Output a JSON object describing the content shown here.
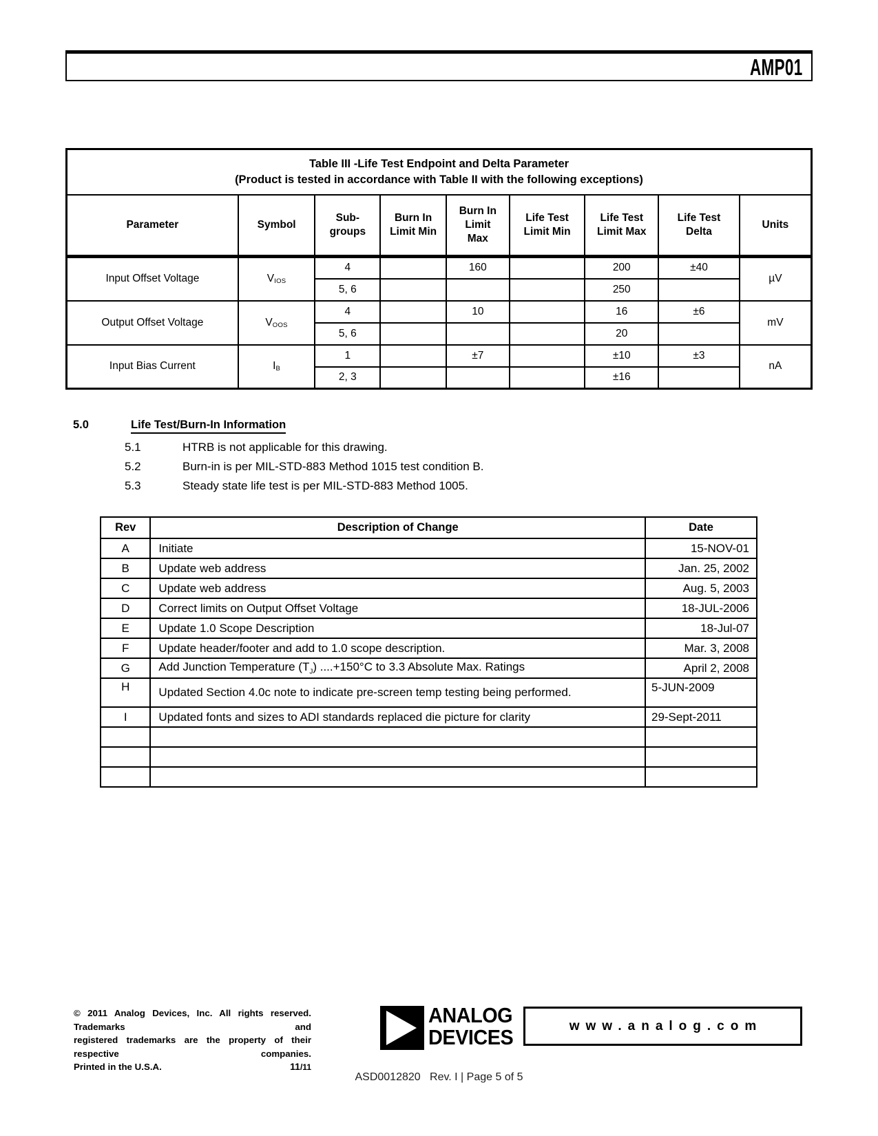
{
  "header": {
    "part_number": "AMP01"
  },
  "life_test_table": {
    "title_line1": "Table III -Life Test Endpoint and Delta Parameter",
    "title_line2": "(Product is tested in accordance with Table II with the following exceptions)",
    "columns": [
      "Parameter",
      "Symbol",
      "Sub-\ngroups",
      "Burn In\nLimit Min",
      "Burn In\nLimit\nMax",
      "Life Test\nLimit Min",
      "Life Test\nLimit Max",
      "Life Test\nDelta",
      "Units"
    ],
    "groups": [
      {
        "parameter": "Input Offset Voltage",
        "symbol_base": "V",
        "symbol_sub": "IOS",
        "units": "µV",
        "subrows": [
          {
            "subgroups": "4",
            "burn_in_limit_min": "",
            "burn_in_limit_max": "160",
            "life_test_limit_min": "",
            "life_test_limit_max": "200",
            "life_test_delta": "±40"
          },
          {
            "subgroups": "5, 6",
            "burn_in_limit_min": "",
            "burn_in_limit_max": "",
            "life_test_limit_min": "",
            "life_test_limit_max": "250",
            "life_test_delta": ""
          }
        ]
      },
      {
        "parameter": "Output Offset Voltage",
        "symbol_base": "V",
        "symbol_sub": "OOS",
        "units": "mV",
        "subrows": [
          {
            "subgroups": "4",
            "burn_in_limit_min": "",
            "burn_in_limit_max": "10",
            "life_test_limit_min": "",
            "life_test_limit_max": "16",
            "life_test_delta": "±6"
          },
          {
            "subgroups": "5, 6",
            "burn_in_limit_min": "",
            "burn_in_limit_max": "",
            "life_test_limit_min": "",
            "life_test_limit_max": "20",
            "life_test_delta": ""
          }
        ]
      },
      {
        "parameter": "Input Bias Current",
        "symbol_base": "I",
        "symbol_sub": "B",
        "units": "nA",
        "subrows": [
          {
            "subgroups": "1",
            "burn_in_limit_min": "",
            "burn_in_limit_max": "±7",
            "life_test_limit_min": "",
            "life_test_limit_max": "±10",
            "life_test_delta": "±3"
          },
          {
            "subgroups": "2, 3",
            "burn_in_limit_min": "",
            "burn_in_limit_max": "",
            "life_test_limit_min": "",
            "life_test_limit_max": "±16",
            "life_test_delta": ""
          }
        ]
      }
    ]
  },
  "section5": {
    "number": "5.0",
    "heading": "Life Test/Burn-In Information",
    "items": [
      {
        "num": "5.1",
        "text": "HTRB is not applicable for this drawing."
      },
      {
        "num": "5.2",
        "text": "Burn-in is per MIL-STD-883 Method 1015 test condition B."
      },
      {
        "num": "5.3",
        "text": "Steady state life test is per MIL-STD-883 Method 1005."
      }
    ]
  },
  "revision_table": {
    "columns": [
      "Rev",
      "Description of Change",
      "Date"
    ],
    "rows": [
      {
        "rev": "A",
        "description": [
          {
            "text": "Initiate"
          }
        ],
        "date": "15-NOV-01"
      },
      {
        "rev": "B",
        "description": [
          {
            "text": "Update web address"
          }
        ],
        "date": "Jan. 25, 2002"
      },
      {
        "rev": "C",
        "description": [
          {
            "text": "Update web address"
          }
        ],
        "date": "Aug. 5, 2003"
      },
      {
        "rev": "D",
        "description": [
          {
            "text": "Correct limits on Output Offset Voltage"
          }
        ],
        "date": "18-JUL-2006"
      },
      {
        "rev": "E",
        "description": [
          {
            "text": "Update 1.0 Scope Description"
          }
        ],
        "date": "18-Jul-07"
      },
      {
        "rev": "F",
        "description": [
          {
            "text": "Update header/footer and add to 1.0 scope description."
          }
        ],
        "date": "Mar. 3, 2008"
      },
      {
        "rev": "G",
        "description": [
          {
            "text": "Add Junction Temperature (T"
          },
          {
            "text": "J",
            "sub": true
          },
          {
            "text": ") ....+150°C to 3.3 Absolute Max. Ratings"
          }
        ],
        "date": "April 2, 2008"
      },
      {
        "rev": "H",
        "description": [
          {
            "text": "Updated Section 4.0c note to indicate pre-screen temp testing being performed."
          }
        ],
        "date": "5-JUN-2009",
        "tall": true,
        "date_align": "left"
      },
      {
        "rev": "I",
        "description": [
          {
            "text": "Updated fonts and sizes to ADI standards replaced die picture for clarity"
          }
        ],
        "date": "29-Sept-2011",
        "date_align": "left"
      },
      {
        "rev": "",
        "description": [],
        "date": ""
      },
      {
        "rev": "",
        "description": [],
        "date": ""
      },
      {
        "rev": "",
        "description": [],
        "date": ""
      }
    ]
  },
  "footer": {
    "copyright_line1": "© 2011 Analog Devices, Inc. All rights reserved. Trademarks and",
    "copyright_line2": "registered trademarks are the property of their respective companies.",
    "copyright_line3": "Printed in the U.S.A.",
    "print_code_main": "11",
    "print_code_rest": "/11",
    "logo_line1": "ANALOG",
    "logo_line2": "DEVICES",
    "website": "www.analog.com",
    "doc_line": "ASD0012820   Rev. I | Page 5 of 5"
  }
}
